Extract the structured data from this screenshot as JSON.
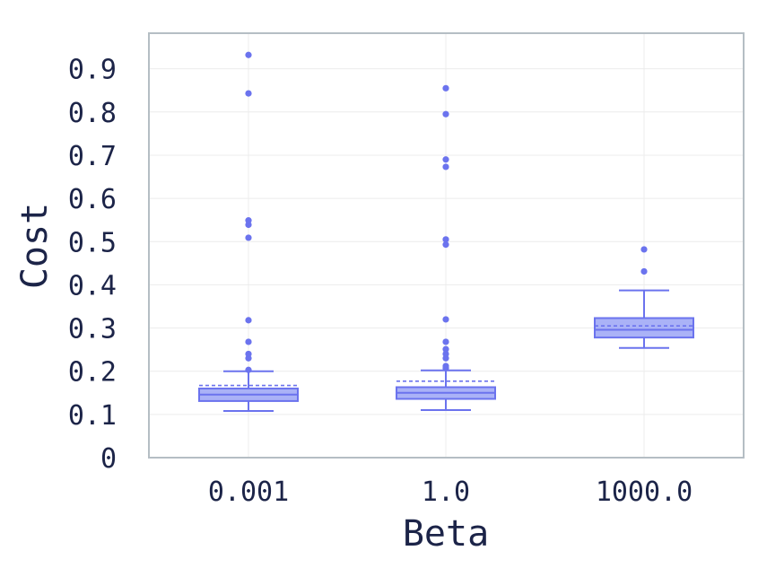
{
  "chart_data": {
    "type": "box",
    "title": "",
    "xlabel": "Beta",
    "ylabel": "Cost",
    "ylim": [
      0,
      0.98
    ],
    "y_ticks": [
      0,
      0.1,
      0.2,
      0.3,
      0.4,
      0.5,
      0.6,
      0.7,
      0.8,
      0.9
    ],
    "y_tick_labels": [
      "0",
      "0.1",
      "0.2",
      "0.3",
      "0.4",
      "0.5",
      "0.6",
      "0.7",
      "0.8",
      "0.9"
    ],
    "grid": true,
    "mean_line": "dashed",
    "colors": {
      "box_fill": "#aab2f7",
      "box_stroke": "#6b73ee",
      "outlier": "#6b73ee",
      "grid": "#ececec",
      "frame": "#b5bec4",
      "text": "#1c2448"
    },
    "categories": [
      "0.001",
      "1.0",
      "1000.0"
    ],
    "boxes": [
      {
        "category": "0.001",
        "whisker_low": 0.108,
        "q1": 0.131,
        "median": 0.146,
        "q3": 0.16,
        "whisker_high": 0.2,
        "mean": 0.167,
        "outliers": [
          0.203,
          0.23,
          0.24,
          0.268,
          0.318,
          0.509,
          0.539,
          0.549,
          0.843,
          0.932
        ]
      },
      {
        "category": "1.0",
        "whisker_low": 0.11,
        "q1": 0.136,
        "median": 0.15,
        "q3": 0.163,
        "whisker_high": 0.202,
        "mean": 0.177,
        "outliers": [
          0.207,
          0.212,
          0.23,
          0.24,
          0.251,
          0.268,
          0.32,
          0.493,
          0.505,
          0.673,
          0.69,
          0.795,
          0.855
        ]
      },
      {
        "category": "1000.0",
        "whisker_low": 0.254,
        "q1": 0.278,
        "median": 0.296,
        "q3": 0.323,
        "whisker_high": 0.387,
        "mean": 0.305,
        "outliers": [
          0.431,
          0.482
        ]
      }
    ]
  }
}
